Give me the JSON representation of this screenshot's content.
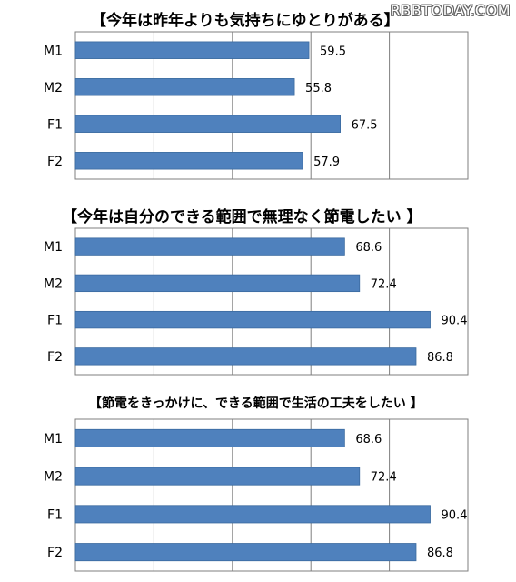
{
  "watermark": "RBBTODAY.COM",
  "chart_data": [
    {
      "type": "bar",
      "orientation": "horizontal",
      "title": "【今年は昨年よりも気持ちにゆとりがある】",
      "categories": [
        "M1",
        "M2",
        "F1",
        "F2"
      ],
      "values": [
        59.5,
        55.8,
        67.5,
        57.9
      ],
      "xlim": [
        0,
        100
      ],
      "grid": true,
      "color": "#4f81bd"
    },
    {
      "type": "bar",
      "orientation": "horizontal",
      "title": "【今年は自分のできる範囲で無理なく節電したい 】",
      "categories": [
        "M1",
        "M2",
        "F1",
        "F2"
      ],
      "values": [
        68.6,
        72.4,
        90.4,
        86.8
      ],
      "xlim": [
        0,
        100
      ],
      "grid": true,
      "color": "#4f81bd"
    },
    {
      "type": "bar",
      "orientation": "horizontal",
      "title": "【節電をきっかけに、できる範囲で生活の工夫をしたい 】",
      "categories": [
        "M1",
        "M2",
        "F1",
        "F2"
      ],
      "values": [
        68.6,
        72.4,
        90.4,
        86.8
      ],
      "xlim": [
        0,
        100
      ],
      "grid": true,
      "color": "#4f81bd"
    }
  ]
}
